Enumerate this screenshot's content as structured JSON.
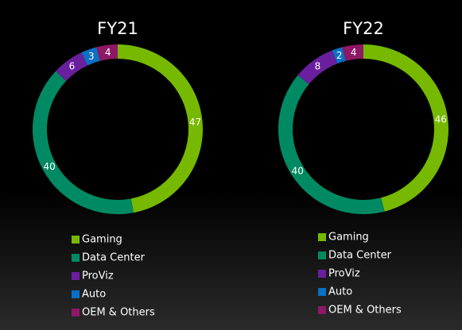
{
  "chart_data": [
    {
      "type": "pie",
      "title": "FY21",
      "legend_position": "bottom",
      "categories": [
        "Gaming",
        "Data Center",
        "ProViz",
        "Auto",
        "OEM & Others"
      ],
      "values": [
        47,
        40,
        6,
        3,
        4
      ],
      "colors": [
        "#76b900",
        "#008a63",
        "#6a1f9e",
        "#0a70c2",
        "#8e1766"
      ]
    },
    {
      "type": "pie",
      "title": "FY22",
      "legend_position": "bottom",
      "categories": [
        "Gaming",
        "Data Center",
        "ProViz",
        "Auto",
        "OEM & Others"
      ],
      "values": [
        46,
        40,
        8,
        2,
        4
      ],
      "colors": [
        "#76b900",
        "#008a63",
        "#6a1f9e",
        "#0a70c2",
        "#8e1766"
      ]
    }
  ]
}
